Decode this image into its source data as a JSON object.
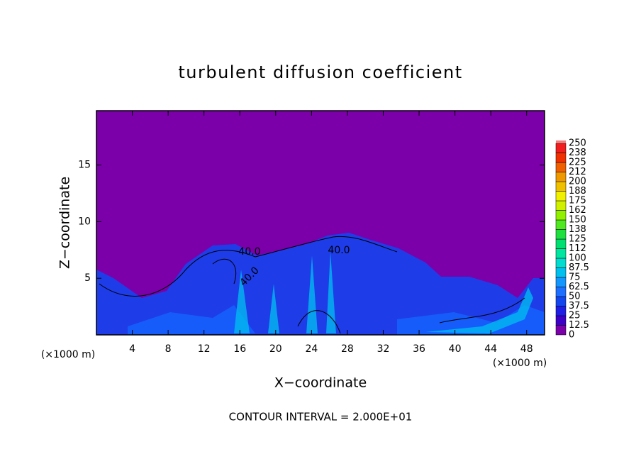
{
  "chart_data": {
    "type": "contour",
    "title": "turbulent diffusion coefficient",
    "xlabel": "X−coordinate",
    "ylabel": "Z−coordinate",
    "x_unit_left": "(×1000 m)",
    "x_unit_right": "(×1000 m)",
    "footer": "CONTOUR INTERVAL = 2.000E+01",
    "xlim": [
      0,
      50
    ],
    "ylim": [
      0,
      19.8
    ],
    "xticks": [
      4,
      8,
      12,
      16,
      20,
      24,
      28,
      32,
      36,
      40,
      44,
      48
    ],
    "yticks": [
      5,
      10,
      15
    ],
    "contour_labels": [
      "40.0",
      "40.0",
      "40.0"
    ],
    "colorbar": {
      "ticks": [
        0,
        12.5,
        25,
        37.5,
        50,
        62.5,
        75,
        87.5,
        100,
        112,
        125,
        138,
        150,
        162,
        175,
        188,
        200,
        212,
        225,
        238,
        250
      ],
      "colors": [
        "#7b00aa",
        "#3c00c8",
        "#1e1ee6",
        "#1446f0",
        "#1e6eff",
        "#1496ff",
        "#00c0f0",
        "#00dcd0",
        "#00e6a0",
        "#00e070",
        "#20e040",
        "#50e820",
        "#90f000",
        "#d0f000",
        "#f0f000",
        "#f0c000",
        "#f09800",
        "#f06000",
        "#f03000",
        "#f01e1e"
      ]
    }
  }
}
